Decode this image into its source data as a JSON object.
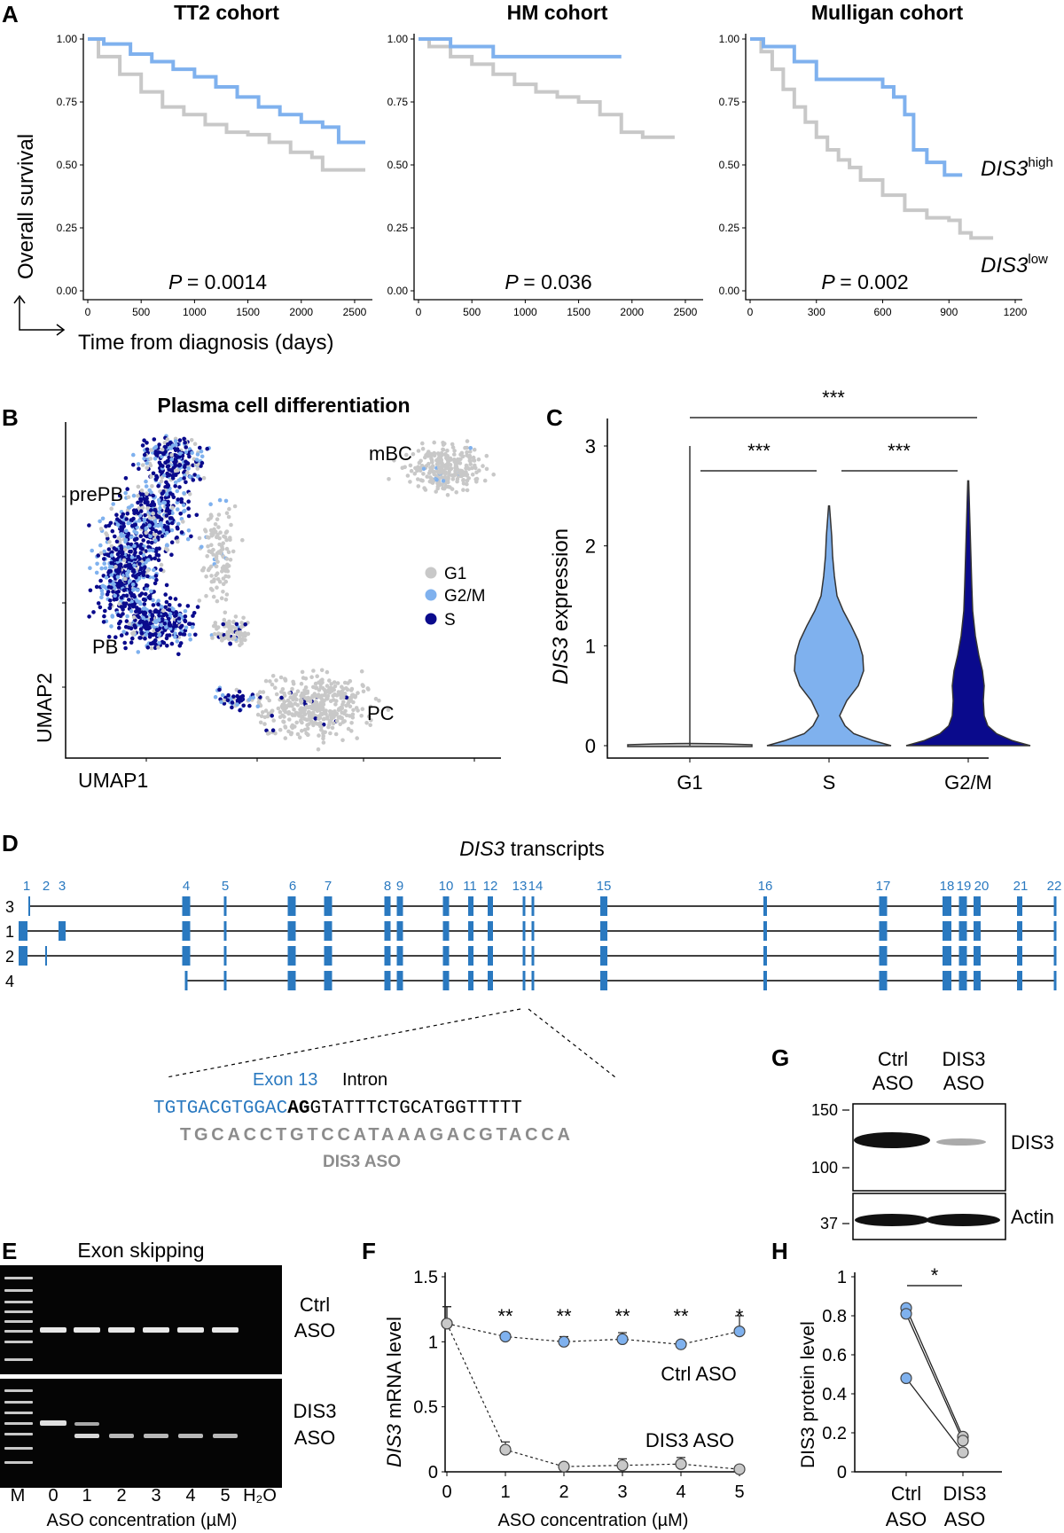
{
  "panel_letters": [
    "A",
    "B",
    "C",
    "D",
    "E",
    "F",
    "G",
    "H"
  ],
  "colors": {
    "high": "#7fb1ee",
    "low": "#c8c8c8",
    "dark": "#0a0a8c",
    "exon": "#2a79c0",
    "grey_text": "#8c8c8c"
  },
  "A": {
    "y_label": "Overall survival",
    "x_label": "Time from diagnosis (days)",
    "y_ticks": [
      "0.00",
      "0.25",
      "0.50",
      "0.75",
      "1.00"
    ],
    "legend_high": {
      "gene": "DIS3",
      "sup": "high"
    },
    "legend_low": {
      "gene": "DIS3",
      "sup": "low"
    },
    "p_prefix": "P",
    "cohorts": [
      {
        "title": "TT2 cohort",
        "p_value": "= 0.0014",
        "x_ticks": [
          "0",
          "500",
          "1000",
          "1500",
          "2000",
          "2500"
        ]
      },
      {
        "title": "HM cohort",
        "p_value": "= 0.036",
        "x_ticks": [
          "0",
          "500",
          "1000",
          "1500",
          "2000",
          "2500"
        ]
      },
      {
        "title": "Mulligan cohort",
        "p_value": "= 0.002",
        "x_ticks": [
          "0",
          "300",
          "600",
          "900",
          "1200"
        ]
      }
    ]
  },
  "B": {
    "title": "Plasma cell differentiation",
    "x_label": "UMAP1",
    "y_label": "UMAP2",
    "cluster_labels": [
      "prePB",
      "PB",
      "mBC",
      "PC"
    ],
    "legend": [
      "G1",
      "G2/M",
      "S"
    ]
  },
  "C": {
    "y_label_gene": "DIS3",
    "y_label_rest": " expression",
    "y_ticks": [
      "0",
      "1",
      "2",
      "3"
    ],
    "categories": [
      "G1",
      "S",
      "G2/M"
    ],
    "significance": [
      "***",
      "***",
      "***"
    ]
  },
  "D": {
    "title_gene": "DIS3",
    "title_rest": " transcripts",
    "exon_numbers": [
      "1",
      "2",
      "3",
      "4",
      "5",
      "6",
      "7",
      "8",
      "9",
      "10",
      "11",
      "12",
      "13",
      "14",
      "15",
      "16",
      "17",
      "18",
      "19",
      "20",
      "21",
      "22"
    ],
    "transcript_ids": [
      "3",
      "1",
      "2",
      "4"
    ],
    "exon_label": "Exon 13",
    "intron_label": "Intron",
    "seq_exon": "TGTGACGTGGAC",
    "seq_splice": "AG",
    "seq_intron": "GTATTTCTGCATGGTTTTT",
    "aso_seq": "TGCACCTGTCCATAAAGACGTACCA",
    "aso_label": "DIS3 ASO"
  },
  "E": {
    "title": "Exon skipping",
    "lane_labels": [
      "M",
      "0",
      "1",
      "2",
      "3",
      "4",
      "5",
      "H₂O"
    ],
    "row_labels": [
      [
        "Ctrl",
        "ASO"
      ],
      [
        "DIS3",
        "ASO"
      ]
    ],
    "x_label": "ASO concentration (µM)"
  },
  "F": {
    "y_label_gene": "DIS3",
    "y_label_rest": " mRNA level",
    "x_label": "ASO concentration (µM)",
    "series_labels": [
      "Ctrl ASO",
      "DIS3 ASO"
    ],
    "significance": [
      "**",
      "**",
      "**",
      "**",
      "*"
    ],
    "y_ticks": [
      "0",
      "0.5",
      "1",
      "1.5"
    ],
    "x_ticks": [
      "0",
      "1",
      "2",
      "3",
      "4",
      "5"
    ]
  },
  "G": {
    "lane_labels": [
      [
        "Ctrl",
        "ASO"
      ],
      [
        "DIS3",
        "ASO"
      ]
    ],
    "mw_markers": [
      "150",
      "100",
      "37"
    ],
    "band_labels": [
      "DIS3",
      "Actin"
    ]
  },
  "H": {
    "y_label": "DIS3 protein level",
    "y_ticks": [
      "0",
      "0.2",
      "0.4",
      "0.6",
      "0.8",
      "1"
    ],
    "categories": [
      [
        "Ctrl",
        "ASO"
      ],
      [
        "DIS3",
        "ASO"
      ]
    ],
    "significance": "*"
  },
  "chart_data": [
    {
      "type": "line",
      "title": "TT2 cohort",
      "xlabel": "Time from diagnosis (days)",
      "ylabel": "Overall survival",
      "xlim": [
        0,
        2600
      ],
      "ylim": [
        0,
        1
      ],
      "series": [
        {
          "name": "DIS3 high",
          "color": "#7fb1ee",
          "x": [
            0,
            150,
            400,
            600,
            800,
            1000,
            1200,
            1400,
            1600,
            1800,
            2000,
            2200,
            2350,
            2600
          ],
          "values": [
            1.0,
            0.98,
            0.94,
            0.91,
            0.88,
            0.85,
            0.81,
            0.77,
            0.73,
            0.7,
            0.67,
            0.65,
            0.59,
            0.59
          ]
        },
        {
          "name": "DIS3 low",
          "color": "#c8c8c8",
          "x": [
            0,
            100,
            300,
            500,
            700,
            900,
            1100,
            1300,
            1500,
            1700,
            1900,
            2100,
            2200,
            2600
          ],
          "values": [
            1.0,
            0.93,
            0.86,
            0.79,
            0.73,
            0.7,
            0.66,
            0.63,
            0.62,
            0.59,
            0.55,
            0.53,
            0.48,
            0.48
          ]
        }
      ],
      "p_value": "P = 0.0014"
    },
    {
      "type": "line",
      "title": "HM cohort",
      "xlabel": "Time from diagnosis (days)",
      "ylabel": "Overall survival",
      "xlim": [
        0,
        2600
      ],
      "ylim": [
        0,
        1
      ],
      "series": [
        {
          "name": "DIS3 high",
          "color": "#7fb1ee",
          "x": [
            0,
            300,
            700,
            1900
          ],
          "values": [
            1.0,
            0.97,
            0.93,
            0.93
          ]
        },
        {
          "name": "DIS3 low",
          "color": "#c8c8c8",
          "x": [
            0,
            100,
            300,
            500,
            700,
            900,
            1100,
            1300,
            1500,
            1700,
            1900,
            2100,
            2400
          ],
          "values": [
            1.0,
            0.97,
            0.93,
            0.9,
            0.86,
            0.82,
            0.79,
            0.77,
            0.75,
            0.7,
            0.63,
            0.61,
            0.61
          ]
        }
      ],
      "p_value": "P = 0.036"
    },
    {
      "type": "line",
      "title": "Mulligan cohort",
      "xlabel": "Time from diagnosis (days)",
      "ylabel": "Overall survival",
      "xlim": [
        0,
        1200
      ],
      "ylim": [
        0,
        1
      ],
      "series": [
        {
          "name": "DIS3 high",
          "color": "#7fb1ee",
          "x": [
            0,
            60,
            200,
            300,
            480,
            600,
            650,
            700,
            740,
            800,
            880,
            960
          ],
          "values": [
            1.0,
            0.97,
            0.91,
            0.84,
            0.84,
            0.81,
            0.77,
            0.7,
            0.56,
            0.51,
            0.46,
            0.46
          ]
        },
        {
          "name": "DIS3 low",
          "color": "#c8c8c8",
          "x": [
            0,
            50,
            100,
            150,
            200,
            250,
            300,
            350,
            400,
            450,
            500,
            600,
            700,
            800,
            900,
            950,
            1000,
            1100
          ],
          "values": [
            1.0,
            0.95,
            0.88,
            0.8,
            0.73,
            0.67,
            0.61,
            0.56,
            0.52,
            0.49,
            0.44,
            0.38,
            0.32,
            0.29,
            0.28,
            0.23,
            0.21,
            0.21
          ]
        }
      ],
      "p_value": "P = 0.002"
    },
    {
      "type": "scatter",
      "title": "Plasma cell differentiation",
      "xlabel": "UMAP1",
      "ylabel": "UMAP2",
      "series": [
        {
          "name": "G1",
          "color": "#c8c8c8",
          "clusters": [
            "mBC",
            "PC",
            "prePB",
            "PB"
          ]
        },
        {
          "name": "G2/M",
          "color": "#7fb1ee",
          "clusters": [
            "prePB",
            "PB"
          ]
        },
        {
          "name": "S",
          "color": "#0a0a8c",
          "clusters": [
            "prePB",
            "PB",
            "PC"
          ]
        }
      ]
    },
    {
      "type": "violin",
      "xlabel": "",
      "ylabel": "DIS3 expression",
      "ylim": [
        0,
        3
      ],
      "categories": [
        "G1",
        "S",
        "G2/M"
      ],
      "series": [
        {
          "name": "G1",
          "color": "#c8c8c8",
          "max": 3.0,
          "mode": 0.0
        },
        {
          "name": "S",
          "color": "#7fb1ee",
          "max": 2.4,
          "mode": 0.9
        },
        {
          "name": "G2/M",
          "color": "#0a0a8c",
          "max": 2.65,
          "mode": 0.25
        }
      ],
      "significance": {
        "G1-S": "***",
        "S-G2/M": "***",
        "G1-G2/M": "***"
      }
    },
    {
      "type": "line",
      "xlabel": "ASO concentration (µM)",
      "ylabel": "DIS3 mRNA level",
      "ylim": [
        0,
        1.5
      ],
      "x": [
        0,
        1,
        2,
        3,
        4,
        5
      ],
      "series": [
        {
          "name": "Ctrl ASO",
          "color": "#7fb1ee",
          "values": [
            1.14,
            1.04,
            1.0,
            1.02,
            0.98,
            1.08
          ],
          "errors": [
            0.13,
            0.02,
            0.04,
            0.05,
            0.02,
            0.12
          ]
        },
        {
          "name": "DIS3 ASO",
          "color": "#c8c8c8",
          "values": [
            1.14,
            0.17,
            0.04,
            0.05,
            0.06,
            0.02
          ],
          "errors": [
            0.13,
            0.06,
            0.02,
            0.05,
            0.05,
            0.02
          ]
        }
      ],
      "significance": [
        "**",
        "**",
        "**",
        "**",
        "*"
      ]
    },
    {
      "type": "scatter",
      "xlabel": "",
      "ylabel": "DIS3 protein level",
      "ylim": [
        0,
        1
      ],
      "categories": [
        "Ctrl ASO",
        "DIS3 ASO"
      ],
      "pairs": [
        [
          0.84,
          0.18
        ],
        [
          0.81,
          0.16
        ],
        [
          0.48,
          0.1
        ]
      ],
      "significance": "*"
    }
  ]
}
